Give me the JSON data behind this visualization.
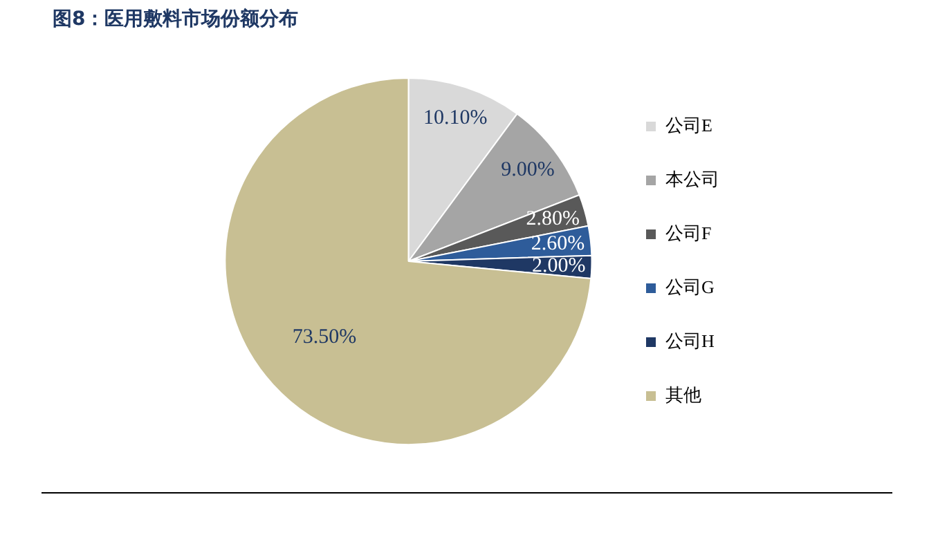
{
  "chart_data": {
    "type": "pie",
    "title": "图8：医用敷料市场份额分布",
    "categories": [
      "公司E",
      "本公司",
      "公司F",
      "公司G",
      "公司H",
      "其他"
    ],
    "values": [
      10.1,
      9.0,
      2.8,
      2.6,
      2.0,
      73.5
    ],
    "value_labels": [
      "10.10%",
      "9.00%",
      "2.80%",
      "2.60%",
      "2.00%",
      "73.50%"
    ],
    "colors": [
      "#d9d9d9",
      "#a5a5a5",
      "#595959",
      "#2e5c9a",
      "#1f3864",
      "#c8bf93"
    ],
    "legend": "right"
  }
}
